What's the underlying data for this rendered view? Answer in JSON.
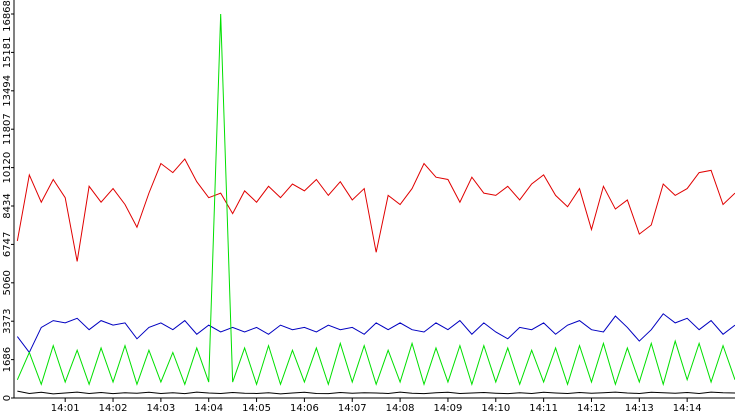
{
  "chart_data": {
    "type": "line",
    "x": [
      840,
      840.25,
      840.5,
      840.75,
      841,
      841.25,
      841.5,
      841.75,
      842,
      842.25,
      842.5,
      842.75,
      843,
      843.25,
      843.5,
      843.75,
      844,
      844.25,
      844.5,
      844.75,
      845,
      845.25,
      845.5,
      845.75,
      846,
      846.25,
      846.5,
      846.75,
      847,
      847.25,
      847.5,
      847.75,
      848,
      848.25,
      848.5,
      848.75,
      849,
      849.25,
      849.5,
      849.75,
      850,
      850.25,
      850.5,
      850.75,
      851,
      851.25,
      851.5,
      851.75,
      852,
      852.25,
      852.5,
      852.75,
      853,
      853.25,
      853.5,
      853.75,
      854,
      854.25,
      854.5,
      854.75,
      855
    ],
    "series": [
      {
        "color": "#e00000",
        "values": [
          6900,
          9800,
          8600,
          9600,
          8800,
          6000,
          9300,
          8600,
          9200,
          8500,
          7500,
          9000,
          10300,
          9900,
          10500,
          9500,
          8800,
          9000,
          8100,
          9100,
          8600,
          9300,
          8800,
          9400,
          9100,
          9600,
          8900,
          9500,
          8700,
          9200,
          6400,
          8900,
          8500,
          9200,
          10300,
          9700,
          9600,
          8600,
          9700,
          9000,
          8900,
          9300,
          8700,
          9400,
          9800,
          8900,
          8400,
          9200,
          7400,
          9300,
          8300,
          8700,
          7200,
          7600,
          9400,
          8900,
          9200,
          9900,
          10000,
          8500,
          9000
        ]
      },
      {
        "color": "#0000c0",
        "values": [
          2700,
          2000,
          3100,
          3400,
          3300,
          3500,
          3000,
          3400,
          3200,
          3300,
          2600,
          3100,
          3300,
          3000,
          3400,
          2800,
          3200,
          2900,
          3100,
          2900,
          3100,
          2800,
          3200,
          3000,
          3100,
          2900,
          3200,
          3000,
          3100,
          2800,
          3300,
          3000,
          3300,
          3000,
          2900,
          3300,
          3000,
          3400,
          2800,
          3300,
          2900,
          2600,
          3100,
          3000,
          3300,
          2800,
          3200,
          3400,
          3000,
          2900,
          3600,
          3100,
          2500,
          3000,
          3700,
          3300,
          3500,
          3000,
          3400,
          2800,
          3200
        ]
      },
      {
        "color": "#00e000",
        "values": [
          800,
          2000,
          600,
          2300,
          700,
          2100,
          600,
          2200,
          700,
          2300,
          600,
          2100,
          700,
          2000,
          600,
          2200,
          700,
          16868,
          700,
          2200,
          600,
          2300,
          600,
          2100,
          700,
          2200,
          600,
          2400,
          700,
          2300,
          600,
          2100,
          700,
          2400,
          600,
          2200,
          700,
          2300,
          600,
          2300,
          700,
          2200,
          600,
          2100,
          700,
          2200,
          600,
          2300,
          700,
          2400,
          600,
          2200,
          700,
          2400,
          600,
          2500,
          800,
          2400,
          700,
          2300,
          800
        ]
      },
      {
        "color": "#000000",
        "values": [
          300,
          200,
          250,
          180,
          220,
          260,
          200,
          240,
          190,
          230,
          210,
          250,
          200,
          230,
          190,
          260,
          220,
          200,
          240,
          210,
          200,
          230,
          180,
          220,
          250,
          200,
          190,
          240,
          210,
          230,
          220,
          200,
          260,
          210,
          190,
          230,
          250,
          200,
          220,
          240,
          210,
          190,
          230,
          200,
          250,
          220,
          200,
          240,
          210,
          230,
          260,
          220,
          200,
          250,
          230,
          210,
          240,
          200,
          260,
          230,
          220
        ]
      }
    ],
    "xlim": [
      839.93,
      855.0
    ],
    "xticks": [
      {
        "value": 841,
        "label": "14:01"
      },
      {
        "value": 842,
        "label": "14:02"
      },
      {
        "value": 843,
        "label": "14:03"
      },
      {
        "value": 844,
        "label": "14:04"
      },
      {
        "value": 845,
        "label": "14:05"
      },
      {
        "value": 846,
        "label": "14:06"
      },
      {
        "value": 847,
        "label": "14:07"
      },
      {
        "value": 848,
        "label": "14:08"
      },
      {
        "value": 849,
        "label": "14:09"
      },
      {
        "value": 850,
        "label": "14:10"
      },
      {
        "value": 851,
        "label": "14:11"
      },
      {
        "value": 852,
        "label": "14:12"
      },
      {
        "value": 853,
        "label": "14:13"
      },
      {
        "value": 854,
        "label": "14:14"
      }
    ],
    "ylim": [
      0,
      16868
    ],
    "yticks": [
      0,
      1686,
      3373,
      5060,
      6747,
      8434,
      10120,
      11807,
      13494,
      15181,
      16868
    ]
  }
}
